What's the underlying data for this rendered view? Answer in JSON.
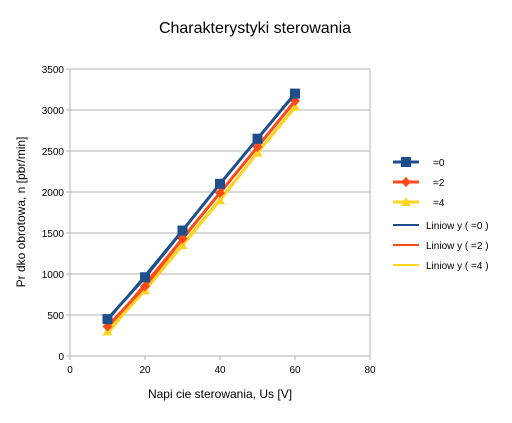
{
  "chart_data": {
    "type": "scatter",
    "title": "Charakterystyki sterowania",
    "xlabel": "Napi  cie sterowania, Us [V]",
    "ylabel": "Pr dko  obrotowa, n [pbr/min]",
    "xlim": [
      0,
      80
    ],
    "ylim": [
      0,
      3500
    ],
    "x_ticks": [
      0,
      20,
      40,
      60,
      80
    ],
    "y_ticks": [
      0,
      500,
      1000,
      1500,
      2000,
      2500,
      3000,
      3500
    ],
    "grid": "horizontal",
    "legend_position": "right",
    "series": [
      {
        "name": "=0",
        "color": "#1f4e8c",
        "marker": "square",
        "x": [
          10,
          20,
          30,
          40,
          50,
          60
        ],
        "y": [
          450,
          960,
          1530,
          2100,
          2650,
          3200
        ]
      },
      {
        "name": "=2",
        "color": "#ff4a1a",
        "marker": "diamond",
        "x": [
          10,
          20,
          30,
          40,
          50,
          60
        ],
        "y": [
          360,
          850,
          1430,
          1990,
          2550,
          3110
        ]
      },
      {
        "name": "=4",
        "color": "#ffd320",
        "marker": "triangle",
        "x": [
          10,
          20,
          30,
          40,
          50,
          60
        ],
        "y": [
          300,
          800,
          1350,
          1900,
          2480,
          3040
        ]
      }
    ],
    "trendlines": [
      {
        "name": "Liniow y (  =0 )",
        "color": "#1f4e8c",
        "series": "=0"
      },
      {
        "name": "Liniow y (  =2 )",
        "color": "#ff4a1a",
        "series": "=2"
      },
      {
        "name": "Liniow y (  =4 )",
        "color": "#ffd320",
        "series": "=4"
      }
    ]
  }
}
